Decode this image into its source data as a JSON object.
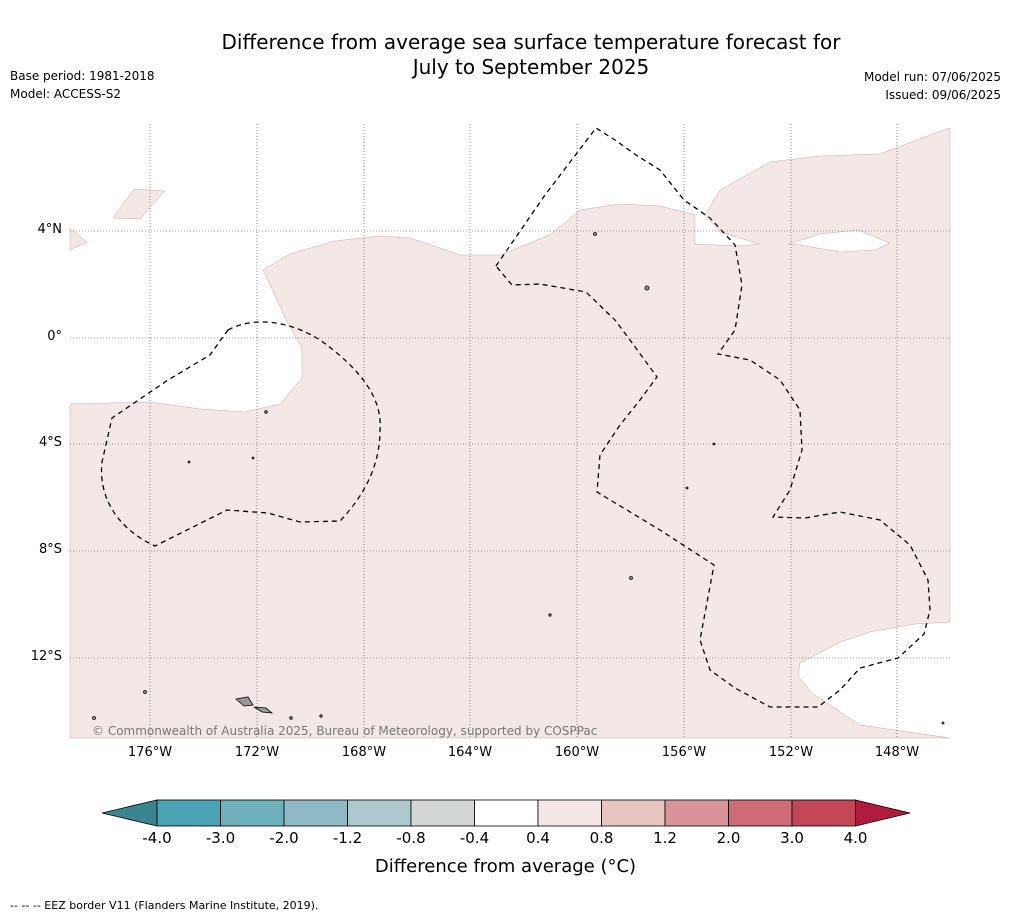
{
  "title_line1": "Difference from average sea surface temperature forecast for",
  "title_line2": "July to September 2025",
  "meta_left": [
    "Base period: 1981-2018",
    "Model: ACCESS-S2"
  ],
  "meta_right": [
    "Model run: 07/06/2025",
    "Issued: 09/06/2025"
  ],
  "map": {
    "lat_labels": [
      "4°N",
      "0°",
      "4°S",
      "8°S",
      "12°S"
    ],
    "lon_labels": [
      "176°W",
      "172°W",
      "168°W",
      "164°W",
      "160°W",
      "156°W",
      "152°W",
      "148°W"
    ],
    "copyright": "© Commonwealth of Australia 2025, Bureau of Meteorology, supported by COSPPac",
    "anomaly_fill_color": "#f4e8e7",
    "land_color": "#999999",
    "eez_line_style": "dashed"
  },
  "colorbar": {
    "ticks": [
      "-4.0",
      "-3.0",
      "-2.0",
      "-1.2",
      "-0.8",
      "-0.4",
      "0.4",
      "0.8",
      "1.2",
      "2.0",
      "3.0",
      "4.0"
    ],
    "colors": [
      "#3a8590",
      "#4aa3b3",
      "#6fb0bd",
      "#8fbac5",
      "#adc9ce",
      "#d3d6d6",
      "#ffffff",
      "#f4e8e7",
      "#e7c4c0",
      "#d8949a",
      "#cd6b77",
      "#c24858",
      "#b01b3e"
    ],
    "title": "Difference from average (°C)"
  },
  "footer": "--  --  -- EEZ border V11 (Flanders Marine Institute, 2019)."
}
